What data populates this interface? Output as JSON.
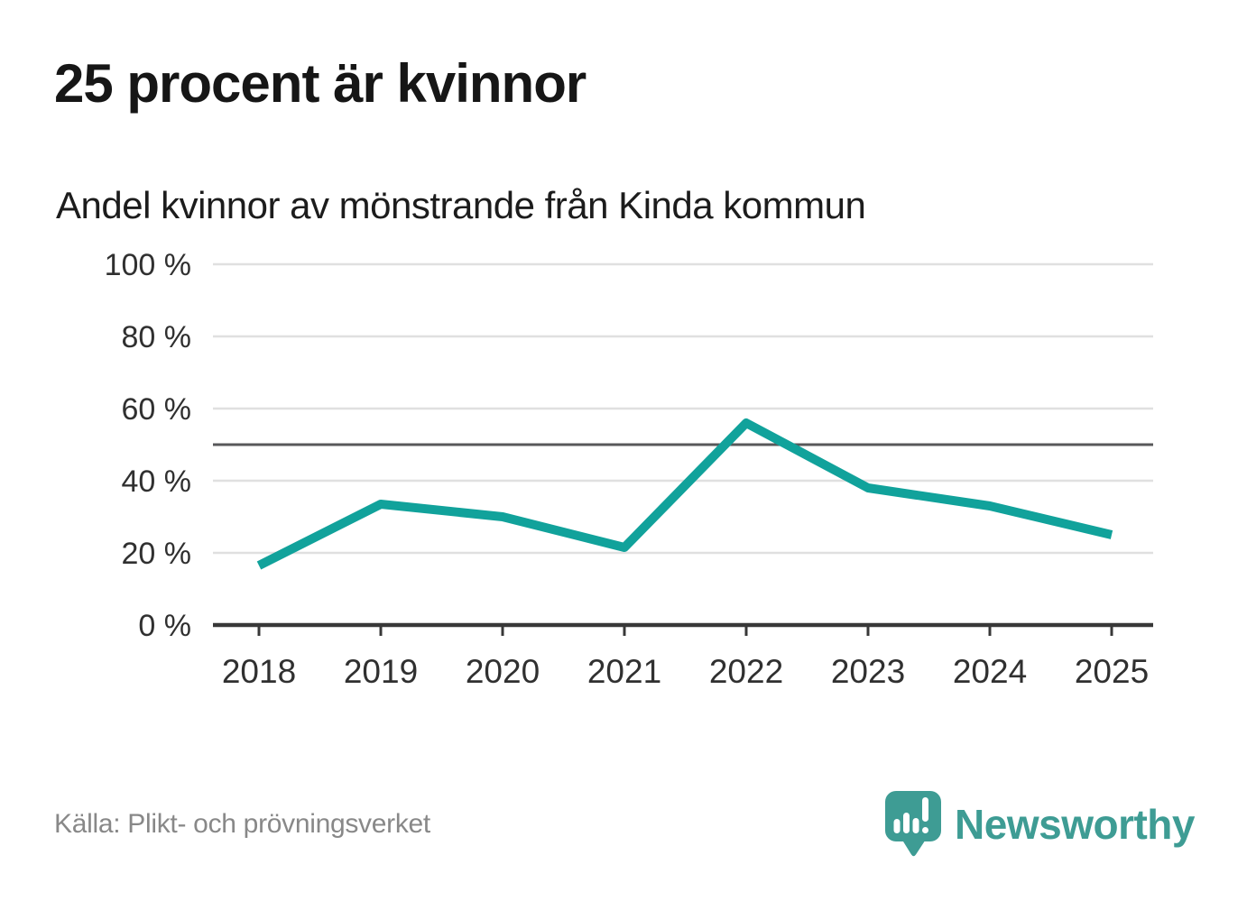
{
  "header": {
    "title": "25 procent är kvinnor",
    "subtitle": "Andel kvinnor av mönstrande från Kinda kommun"
  },
  "chart_data": {
    "type": "line",
    "title": "25 procent är kvinnor",
    "subtitle": "Andel kvinnor av mönstrande från Kinda kommun",
    "categories": [
      "2018",
      "2019",
      "2020",
      "2021",
      "2022",
      "2023",
      "2024",
      "2025"
    ],
    "series": [
      {
        "name": "Andel kvinnor av mönstrande",
        "values": [
          16.5,
          33.5,
          30,
          21.5,
          56,
          38,
          33,
          25
        ]
      }
    ],
    "xlabel": "",
    "ylabel": "",
    "ylim": [
      0,
      100
    ],
    "yticks": [
      0,
      20,
      40,
      60,
      80,
      100
    ],
    "ytick_suffix": " %",
    "reference_line": 50,
    "grid": true,
    "legend_position": "none",
    "line_color": "#11a29b",
    "grid_color": "#e0e0e0",
    "reference_line_color": "#58585a",
    "axis_color": "#383838",
    "tick_label_color": "#303030"
  },
  "footer": {
    "source": "Källa: Plikt- och prövningsverket",
    "brand": "Newsworthy",
    "brand_color": "#3e9c94",
    "logo_icon": "speech-bubble-bar-chart-exclamation"
  }
}
